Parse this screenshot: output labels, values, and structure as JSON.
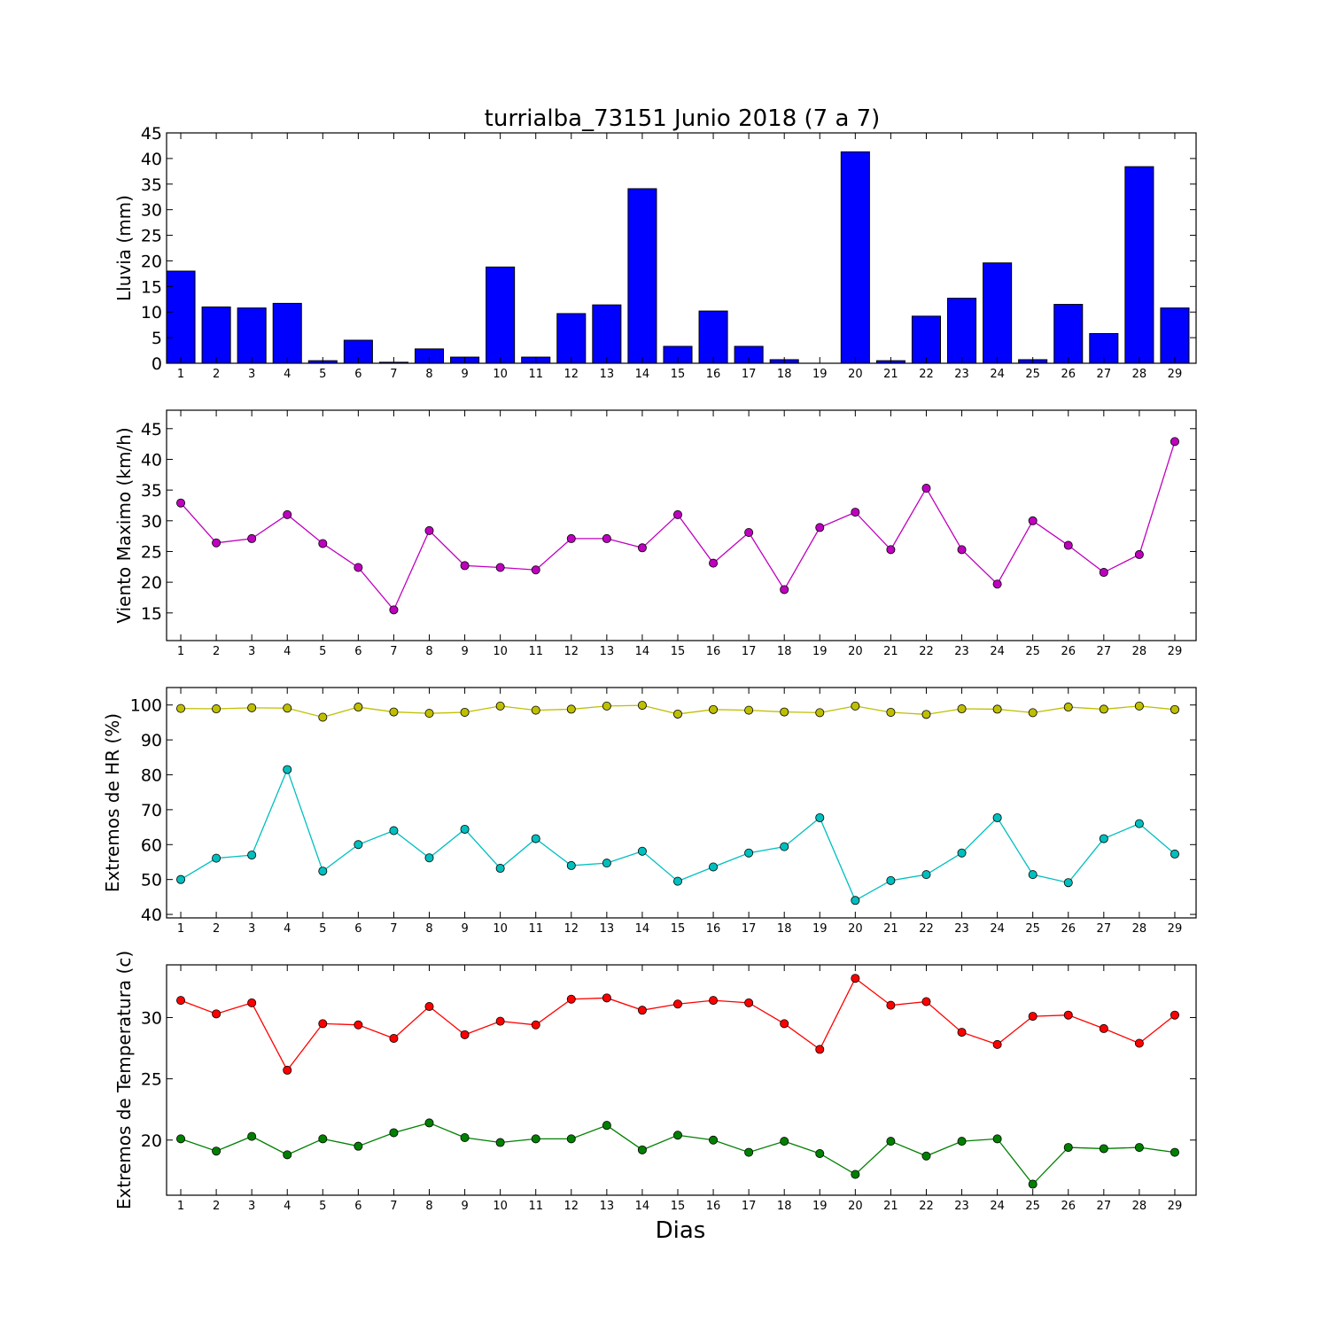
{
  "chart_data": [
    {
      "type": "bar",
      "title": "turrialba_73151 Junio 2018  (7 a 7)",
      "ylabel": "Lluvia (mm)",
      "xlabel": "",
      "ylim": [
        0,
        45
      ],
      "yticks": [
        0,
        5,
        10,
        15,
        20,
        25,
        30,
        35,
        40,
        45
      ],
      "categories": [
        1,
        2,
        3,
        4,
        5,
        6,
        7,
        8,
        9,
        10,
        11,
        12,
        13,
        14,
        15,
        16,
        17,
        18,
        19,
        20,
        21,
        22,
        23,
        24,
        25,
        26,
        27,
        28,
        29
      ],
      "series": [
        {
          "color": "#0000ff",
          "values": [
            18.0,
            11.0,
            10.8,
            11.7,
            0.5,
            4.5,
            0.2,
            2.8,
            1.2,
            18.8,
            1.2,
            9.7,
            11.4,
            34.1,
            3.3,
            10.2,
            3.3,
            0.7,
            0.0,
            41.3,
            0.5,
            9.2,
            12.7,
            19.6,
            0.7,
            11.5,
            5.8,
            38.4,
            10.8
          ]
        }
      ]
    },
    {
      "type": "line",
      "ylabel": "Viento Maximo (km/h)",
      "ylim": [
        10.5,
        48
      ],
      "yticks": [
        15,
        20,
        25,
        30,
        35,
        40,
        45
      ],
      "x": [
        1,
        2,
        3,
        4,
        5,
        6,
        7,
        8,
        9,
        10,
        11,
        12,
        13,
        14,
        15,
        16,
        17,
        18,
        19,
        20,
        21,
        22,
        23,
        24,
        25,
        26,
        27,
        28,
        29
      ],
      "series": [
        {
          "color": "#bf00bf",
          "values": [
            32.9,
            26.4,
            27.1,
            31.0,
            26.3,
            22.4,
            15.5,
            28.4,
            22.7,
            22.4,
            22.0,
            27.1,
            27.1,
            25.6,
            31.0,
            23.1,
            28.1,
            18.8,
            28.9,
            31.4,
            25.3,
            35.3,
            25.3,
            19.7,
            30.0,
            26.0,
            21.6,
            24.5,
            42.9
          ]
        }
      ]
    },
    {
      "type": "line",
      "ylabel": "Extremos de HR (%)",
      "ylim": [
        39,
        105
      ],
      "yticks": [
        40,
        50,
        60,
        70,
        80,
        90,
        100
      ],
      "x": [
        1,
        2,
        3,
        4,
        5,
        6,
        7,
        8,
        9,
        10,
        11,
        12,
        13,
        14,
        15,
        16,
        17,
        18,
        19,
        20,
        21,
        22,
        23,
        24,
        25,
        26,
        27,
        28,
        29
      ],
      "series": [
        {
          "color": "#bfbf00",
          "values": [
            99.0,
            98.9,
            99.2,
            99.1,
            96.5,
            99.4,
            98.0,
            97.6,
            97.9,
            99.7,
            98.5,
            98.8,
            99.7,
            99.9,
            97.4,
            98.7,
            98.5,
            98.0,
            97.8,
            99.7,
            97.9,
            97.3,
            98.9,
            98.8,
            97.8,
            99.4,
            98.8,
            99.7,
            98.7
          ]
        },
        {
          "color": "#00bfbf",
          "values": [
            50.0,
            56.1,
            57.0,
            81.5,
            52.4,
            60.0,
            64.0,
            56.2,
            64.4,
            53.2,
            61.7,
            54.0,
            54.7,
            58.1,
            49.5,
            53.6,
            57.6,
            59.4,
            67.7,
            44.0,
            49.7,
            51.4,
            57.6,
            67.7,
            51.4,
            49.1,
            61.7,
            66.0,
            57.3
          ]
        }
      ]
    },
    {
      "type": "line",
      "ylabel": "Extremos de Temperatura (c)",
      "xlabel": "Dias",
      "ylim": [
        15.5,
        34.3
      ],
      "yticks": [
        20,
        25,
        30
      ],
      "x": [
        1,
        2,
        3,
        4,
        5,
        6,
        7,
        8,
        9,
        10,
        11,
        12,
        13,
        14,
        15,
        16,
        17,
        18,
        19,
        20,
        21,
        22,
        23,
        24,
        25,
        26,
        27,
        28,
        29
      ],
      "series": [
        {
          "color": "#ff0000",
          "values": [
            31.4,
            30.3,
            31.2,
            25.7,
            29.5,
            29.4,
            28.3,
            30.9,
            28.6,
            29.7,
            29.4,
            31.5,
            31.6,
            30.6,
            31.1,
            31.4,
            31.2,
            29.5,
            27.4,
            33.2,
            31.0,
            31.3,
            28.8,
            27.8,
            30.1,
            30.2,
            29.1,
            27.9,
            30.2
          ]
        },
        {
          "color": "#008000",
          "values": [
            20.1,
            19.1,
            20.3,
            18.8,
            20.1,
            19.5,
            20.6,
            21.4,
            20.2,
            19.8,
            20.1,
            20.1,
            21.2,
            19.2,
            20.4,
            20.0,
            19.0,
            19.9,
            18.9,
            17.2,
            19.9,
            18.7,
            19.9,
            20.1,
            16.4,
            19.4,
            19.3,
            19.4,
            19.0
          ]
        }
      ]
    }
  ]
}
